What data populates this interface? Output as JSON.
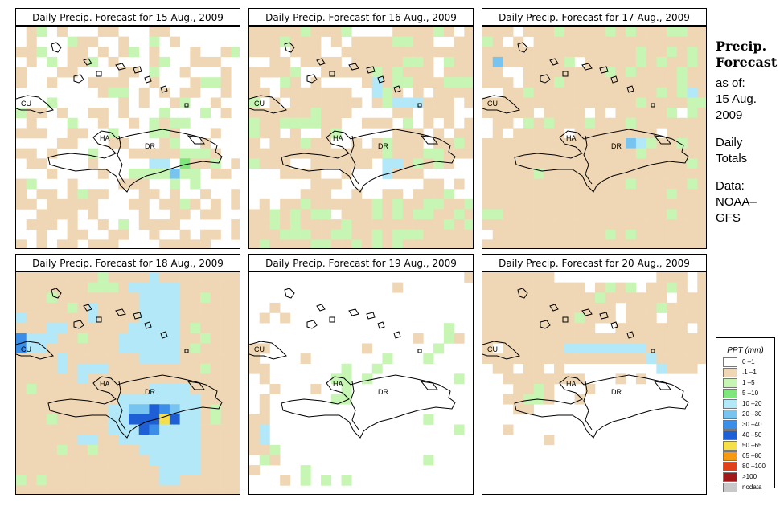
{
  "panels": [
    {
      "title": "Daily Precip. Forecast for  15 Aug., 2009",
      "date": "15 Aug., 2009"
    },
    {
      "title": "Daily Precip. Forecast for  16 Aug., 2009",
      "date": "16 Aug., 2009"
    },
    {
      "title": "Daily Precip. Forecast for  17 Aug., 2009",
      "date": "17 Aug., 2009"
    },
    {
      "title": "Daily Precip. Forecast for  18 Aug., 2009",
      "date": "18 Aug., 2009"
    },
    {
      "title": "Daily Precip. Forecast for  19 Aug., 2009",
      "date": "19 Aug., 2009"
    },
    {
      "title": "Daily Precip. Forecast for  20 Aug., 2009",
      "date": "20 Aug., 2009"
    }
  ],
  "map_labels": {
    "cuba": "CU",
    "haiti": "HA",
    "dominican_republic": "DR"
  },
  "sidebar": {
    "title_line1": "Precip.",
    "title_line2": "Forecast",
    "as_of": "as of:",
    "date_line1": "15 Aug.",
    "date_line2": "2009",
    "totals_line1": "Daily",
    "totals_line2": "Totals",
    "source_line1": "Data:",
    "source_line2": "NOAA–",
    "source_line3": "GFS"
  },
  "legend": {
    "title": "PPT (mm)",
    "items": [
      {
        "label": "0 –1",
        "color": "#ffffff"
      },
      {
        "label": ".1 –1",
        "color": "#efd7b5"
      },
      {
        "label": "1 –5",
        "color": "#c6f5b4"
      },
      {
        "label": "5 –10",
        "color": "#7ee67a"
      },
      {
        "label": "10 –20",
        "color": "#b2e8f7"
      },
      {
        "label": "20 –30",
        "color": "#78c4f1"
      },
      {
        "label": "30 –40",
        "color": "#3b8ee8"
      },
      {
        "label": "40 –50",
        "color": "#1f5fd6"
      },
      {
        "label": "50 –65",
        "color": "#f5e04a"
      },
      {
        "label": "65 –80",
        "color": "#f59a12"
      },
      {
        "label": "80 –100",
        "color": "#e0401a"
      },
      {
        "label": ">100",
        "color": "#a01818"
      },
      {
        "label": "nodata",
        "color": "#c8c8c8"
      }
    ]
  },
  "precip_grids": [
    [
      "0120100011000110000000",
      "0100021100100201000000",
      "1120011010120100010012",
      "0102011201000120011100",
      "1000110000110200100010",
      "1001000111100100012210",
      "0000000012201010110010",
      "0002000000101001200100",
      "2110100110100020002010",
      "0100020010010212200000",
      "1110011002000221000100",
      "0000110001100012001000",
      "1101000200011111222100",
      "0110000100000440311201",
      "0001000010022225220110",
      "1200010000111002020000",
      "1011012110001101001001",
      "1101111100011011210101",
      "0011110100001001101100",
      "0111010010201111000001",
      "0010011001100100101101",
      "1010110111000011111000"
    ],
    [
      "1111121112000011112101",
      "1112111010111122110011",
      "1110111001111111111111",
      "0011011110111112210211",
      "1111200111112121110111",
      "1002101000014122111222",
      "1101111111004210101111",
      "2010111111101244411101",
      "1111112111000011011100",
      "2112222110011102010101",
      "2110100120000011101011",
      "1011121100101211101121",
      "1111111111111211122111",
      "2111001111110441212100",
      "0001111001000411100000",
      "0000001110000000011010",
      "0000011100100110111200",
      "0101121111112121122112",
      "1121212201112121221121",
      "1121211112111111111212",
      "1112221122112122211111",
      "1211112211212121111111"
    ],
    [
      "1110111211112121112211",
      "2101011111111111111111",
      "1111111111111112112121",
      "1511111120111112121121",
      "1100111111112121111211",
      "1110111211111111111211",
      "0011211111111111121241",
      "1111111111111112111122",
      "1111101111010111112021",
      "0110212111211121111111",
      "0101111101111111101111",
      "1111111111111154211211",
      "1111111111111112111111",
      "1111111111111111111121",
      "1111121111111111111111",
      "1111111111111121111121",
      "1111111111111111112111",
      "1111111111111111111111",
      "2211111111111111112111",
      "1111111111111111111111",
      "0111111111112121111111",
      "1111111111111111111111"
    ],
    [
      "1111111121111411111111",
      "1111111222144444111111",
      "1112111111114444112111",
      "1111121411114444111111",
      "4111111411114444111111",
      "1114411111144444121111",
      "6444112111444444112111",
      "6441111111444444121111",
      "1111411111114444111111",
      "1111414441111111112111",
      "1111114111111111111111",
      "1211111111111444411111",
      "1111111111444444441111",
      "1111111114455765441211",
      "1112111114477787441211",
      "1111111114447644441111",
      "1111114411444444441111",
      "1111211211114444441111",
      "1111111111111444441111",
      "1111111111111144441111",
      "2121111111111144111111",
      "1111111111111111111111"
    ],
    [
      "0000000000000000000001",
      "0000000000000010000000",
      "0000000000000000000000",
      "0010000000000000000000",
      "0101000000000000000000",
      "0000000000000000000200",
      "0000000000000000100210",
      "1100000000010000002000",
      "1000010000000200020000",
      "1100000002002000000000",
      "0100000022020000000020",
      "0010001002000000000000",
      "0100000022000000000000",
      "0100000000000000000000",
      "1100000000000000020000",
      "1400000000000000000020",
      "1400000000000000000000",
      "1120000000000000000000",
      "0210000000000000020000",
      "1000020000000000000000",
      "0001020202000000000000",
      "0000000000000000000000"
    ],
    [
      "1111111000000000011101",
      "1111111111012120112101",
      "1111111111121111110111",
      "1111111111111011121111",
      "1111111112111011101111",
      "1111111111100111111101",
      "1111111111111111111111",
      "1011111144444444111111",
      "1111111111111111411111",
      "0110110100000000041110",
      "0011111111000101000000",
      "0001121000100000000000",
      "0011221001000000000000",
      "0001100000000000000000",
      "0000000000000000000000",
      "0010000000000000000000",
      "0000001000000000000000",
      "0000000000000000000000",
      "0000000000000000000000",
      "0000000000000000000000",
      "0000000000000000000000",
      "0000000000000000000000"
    ]
  ]
}
